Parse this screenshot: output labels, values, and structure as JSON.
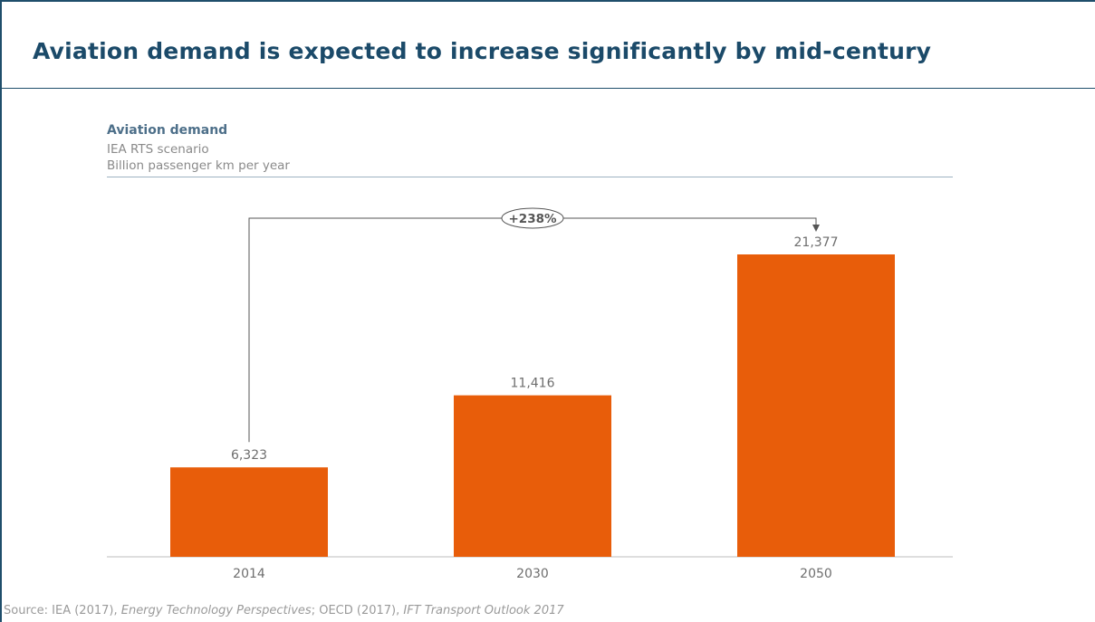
{
  "title": "Aviation demand is expected to increase significantly by mid-century",
  "chart_data": {
    "type": "bar",
    "title": "Aviation demand",
    "subtitle": [
      "IEA RTS scenario",
      "Billion passenger km per year"
    ],
    "categories": [
      "2014",
      "2030",
      "2050"
    ],
    "values": [
      6323,
      11416,
      21377
    ],
    "value_labels": [
      "6,323",
      "11,416",
      "21,377"
    ],
    "ylim": [
      0,
      21377
    ],
    "grid": false,
    "bar_color": "#e85d0a",
    "annotation": {
      "label": "+238%",
      "from": "2014",
      "to": "2050"
    }
  },
  "source": {
    "prefix": "Source: IEA (2017), ",
    "work1": "Energy Technology  Perspectives",
    "middle": "; OECD (2017), ",
    "work2": "IFT Transport Outlook 2017"
  },
  "colors": {
    "accent": "#1b4a69",
    "bar": "#e85d0a"
  }
}
